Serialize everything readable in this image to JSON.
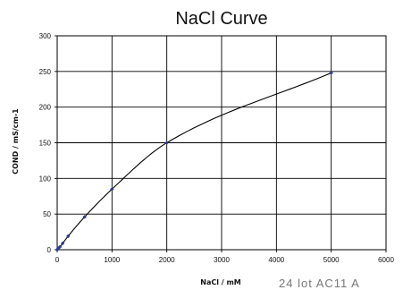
{
  "chart_data": {
    "type": "scatter",
    "title": "NaCl Curve",
    "xlabel": "NaCl / mM",
    "ylabel": "COND / mS/cm-1",
    "xlim": [
      0,
      6000
    ],
    "ylim": [
      0,
      300
    ],
    "x_ticks": [
      0,
      1000,
      2000,
      3000,
      4000,
      5000,
      6000
    ],
    "y_ticks": [
      0,
      50,
      100,
      150,
      200,
      250,
      300
    ],
    "grid": true,
    "legend": "none",
    "series": [
      {
        "points": [
          {
            "x": 0,
            "y": 0
          },
          {
            "x": 20,
            "y": 2
          },
          {
            "x": 50,
            "y": 4
          },
          {
            "x": 100,
            "y": 9
          },
          {
            "x": 200,
            "y": 19
          },
          {
            "x": 500,
            "y": 46
          },
          {
            "x": 1000,
            "y": 85
          },
          {
            "x": 2000,
            "y": 150
          },
          {
            "x": 5000,
            "y": 248
          }
        ],
        "color": "#2b3a8c",
        "marker": "diamond",
        "trendline": "smooth"
      }
    ]
  },
  "corner_text": "24 lot AC11 A"
}
